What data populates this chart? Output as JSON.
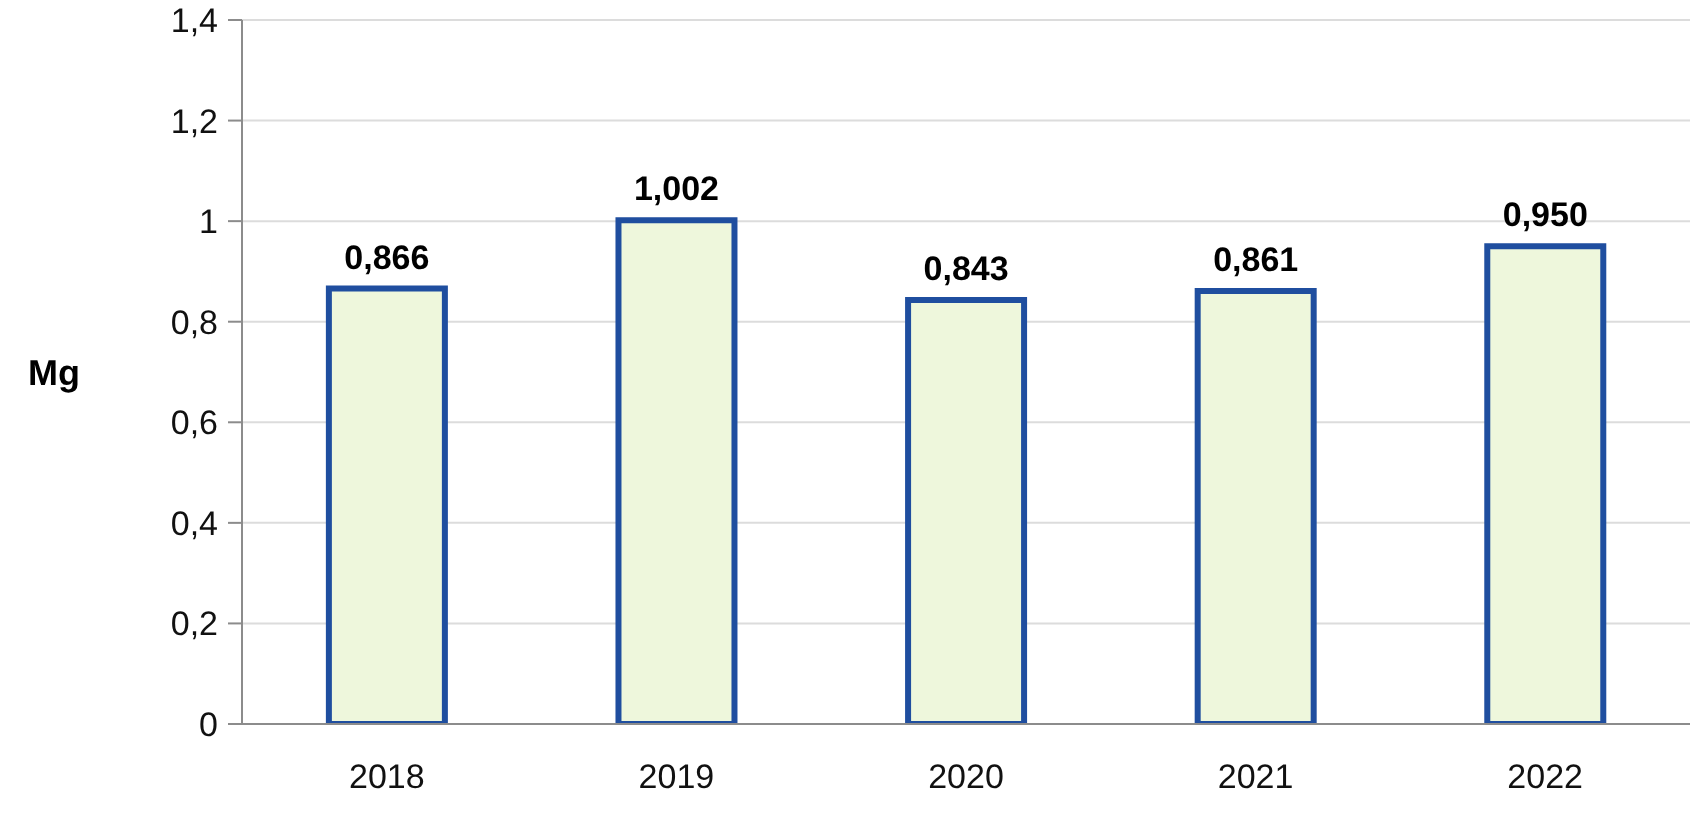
{
  "chart_data": {
    "type": "bar",
    "categories": [
      "2018",
      "2019",
      "2020",
      "2021",
      "2022"
    ],
    "values": [
      0.866,
      1.002,
      0.843,
      0.861,
      0.95
    ],
    "value_labels": [
      "0,866",
      "1,002",
      "0,843",
      "0,861",
      "0,950"
    ],
    "color": "#eef7dc",
    "ylabel": "Mg",
    "ylim": [
      0,
      1.4
    ],
    "yticks": [
      0,
      {
        "value": 0.2,
        "label": "0,2"
      },
      {
        "value": 0.4,
        "label": "0,4"
      },
      {
        "value": 0.6,
        "label": "0,6"
      },
      {
        "value": 0.8,
        "label": "0,8"
      },
      1,
      {
        "value": 1.2,
        "label": "1,2"
      },
      {
        "value": 1.4,
        "label": "1,4"
      }
    ],
    "grid": "y"
  }
}
